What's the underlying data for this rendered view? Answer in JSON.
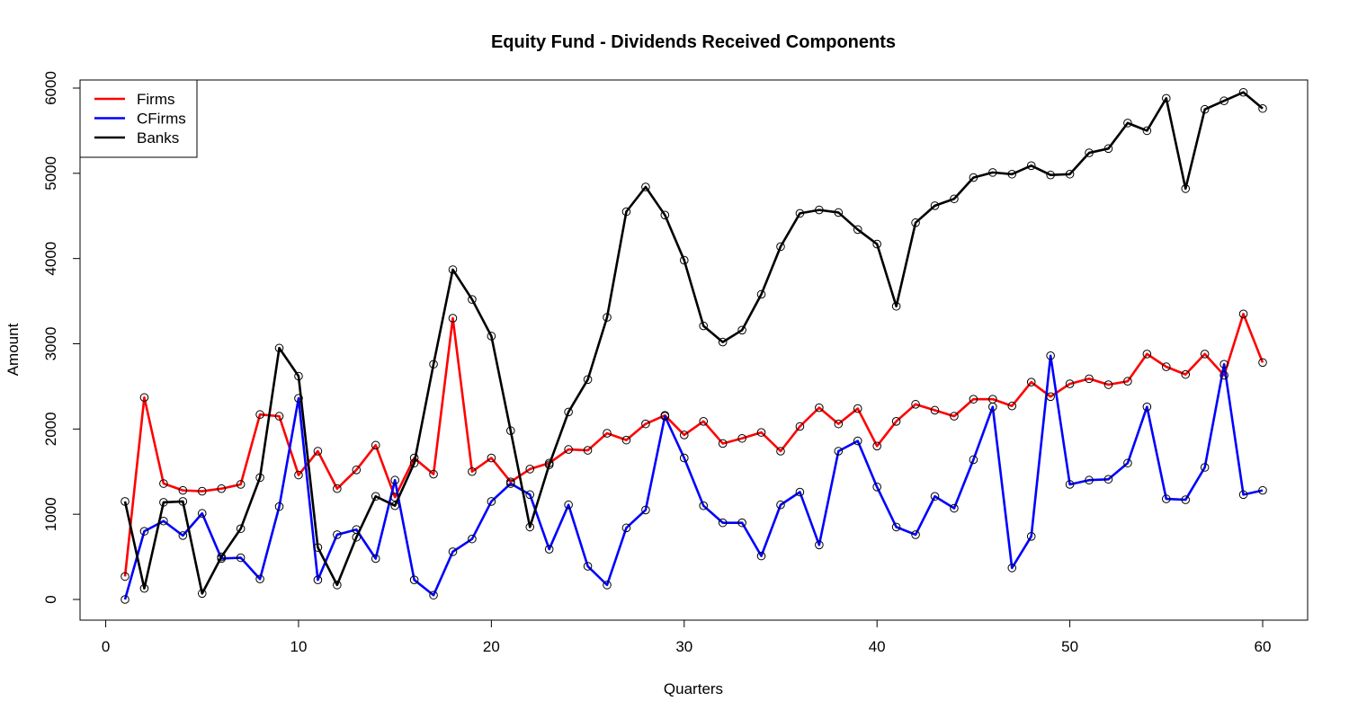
{
  "chart_data": {
    "type": "line",
    "title": "Equity Fund - Dividends Received Components",
    "xlabel": "Quarters",
    "ylabel": "Amount",
    "xlim": [
      1,
      60
    ],
    "ylim": [
      0,
      6000
    ],
    "x_ticks": [
      0,
      10,
      20,
      30,
      40,
      50,
      60
    ],
    "y_ticks": [
      0,
      1000,
      2000,
      3000,
      4000,
      5000,
      6000
    ],
    "grid": false,
    "legend_position": "top-left",
    "x": [
      1,
      2,
      3,
      4,
      5,
      6,
      7,
      8,
      9,
      10,
      11,
      12,
      13,
      14,
      15,
      16,
      17,
      18,
      19,
      20,
      21,
      22,
      23,
      24,
      25,
      26,
      27,
      28,
      29,
      30,
      31,
      32,
      33,
      34,
      35,
      36,
      37,
      38,
      39,
      40,
      41,
      42,
      43,
      44,
      45,
      46,
      47,
      48,
      49,
      50,
      51,
      52,
      53,
      54,
      55,
      56,
      57,
      58,
      59,
      60
    ],
    "series": [
      {
        "name": "Firms",
        "color": "#ff0000",
        "values": [
          270,
          2370,
          1360,
          1280,
          1270,
          1300,
          1350,
          2170,
          2150,
          1460,
          1740,
          1300,
          1520,
          1810,
          1200,
          1660,
          1470,
          3300,
          1500,
          1660,
          1380,
          1530,
          1600,
          1760,
          1750,
          1950,
          1870,
          2060,
          2160,
          1930,
          2090,
          1830,
          1890,
          1960,
          1740,
          2030,
          2250,
          2060,
          2240,
          1800,
          2090,
          2290,
          2220,
          2150,
          2350,
          2350,
          2270,
          2550,
          2380,
          2530,
          2590,
          2520,
          2560,
          2880,
          2730,
          2640,
          2880,
          2630,
          3350,
          2780
        ]
      },
      {
        "name": "CFirms",
        "color": "#0000ff",
        "values": [
          0,
          800,
          920,
          750,
          1010,
          480,
          490,
          240,
          1090,
          2360,
          230,
          760,
          820,
          480,
          1400,
          230,
          50,
          560,
          710,
          1150,
          1360,
          1230,
          590,
          1110,
          390,
          170,
          840,
          1050,
          2150,
          1660,
          1100,
          900,
          900,
          510,
          1110,
          1260,
          640,
          1740,
          1860,
          1320,
          850,
          760,
          1210,
          1070,
          1640,
          2260,
          370,
          740,
          2860,
          1350,
          1400,
          1410,
          1600,
          2260,
          1180,
          1170,
          1550,
          2760,
          1230,
          1280
        ]
      },
      {
        "name": "Banks",
        "color": "#000000",
        "values": [
          1150,
          130,
          1140,
          1150,
          70,
          500,
          830,
          1430,
          2950,
          2620,
          610,
          170,
          730,
          1210,
          1100,
          1600,
          2760,
          3870,
          3520,
          3090,
          1980,
          850,
          1580,
          2200,
          2580,
          3310,
          4550,
          4840,
          4510,
          3980,
          3210,
          3020,
          3160,
          3580,
          4140,
          4530,
          4570,
          4540,
          4340,
          4170,
          3440,
          4420,
          4620,
          4700,
          4950,
          5010,
          4990,
          5090,
          4980,
          4990,
          5240,
          5290,
          5590,
          5500,
          5880,
          4820,
          5750,
          5850,
          5950,
          5760
        ]
      }
    ]
  }
}
